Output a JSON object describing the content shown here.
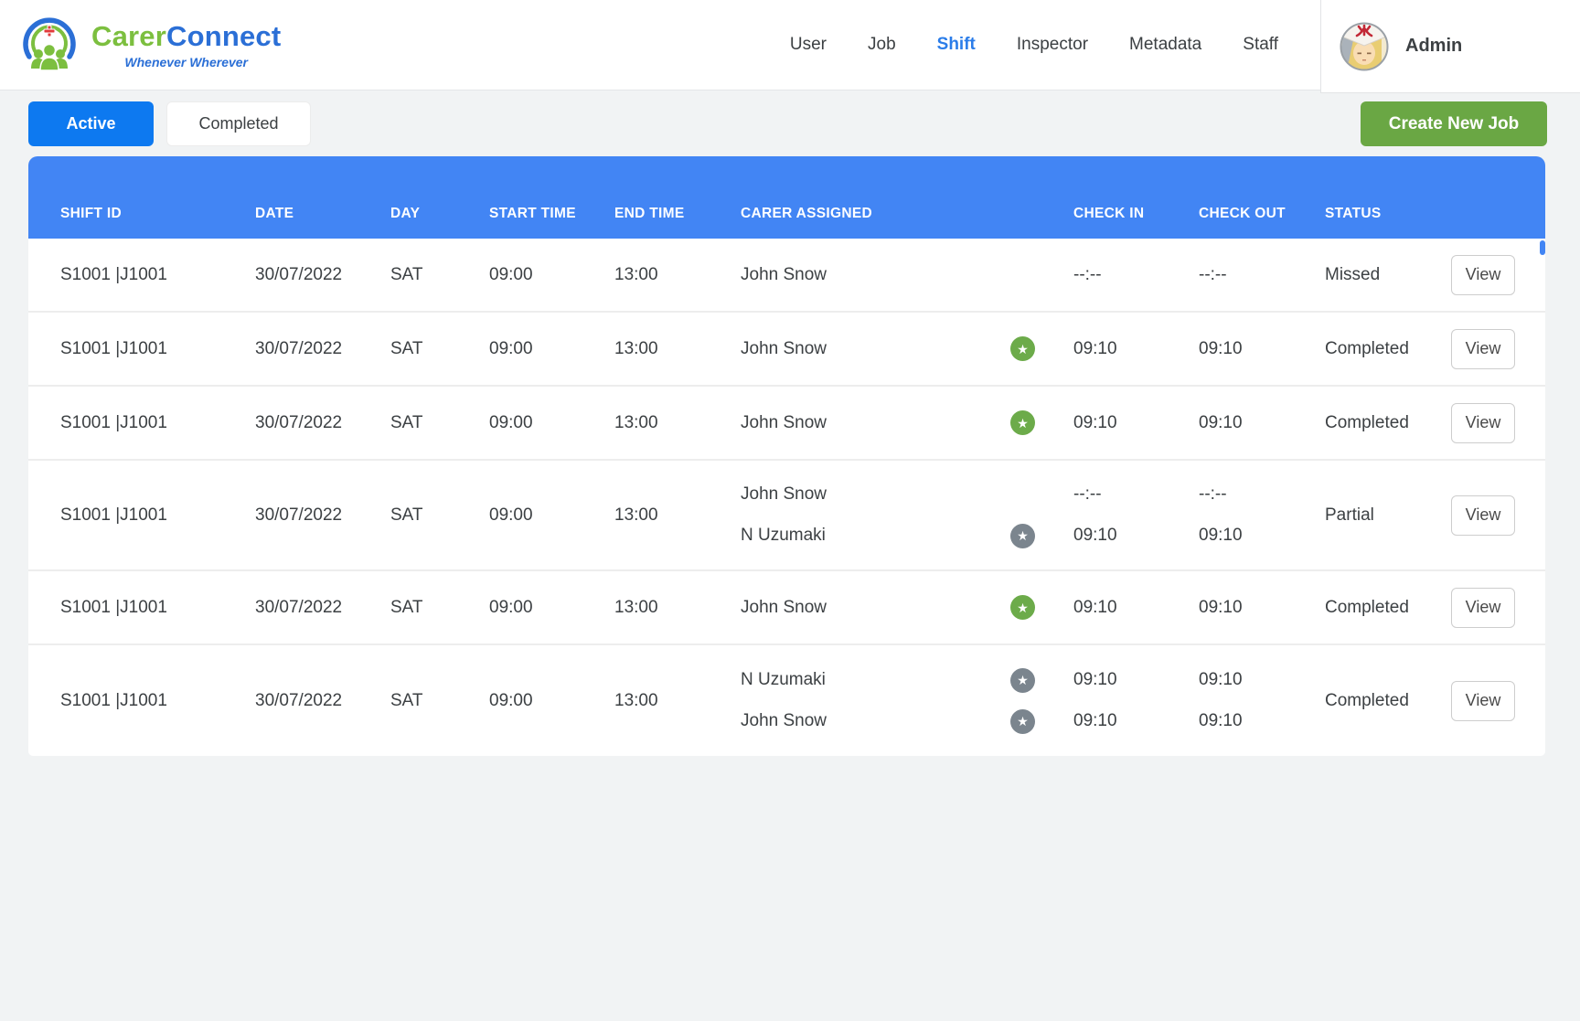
{
  "brand": {
    "name_green": "Carer",
    "name_blue": "Connect",
    "tagline": "Whenever Wherever"
  },
  "nav": {
    "items": [
      {
        "label": "User",
        "active": false
      },
      {
        "label": "Job",
        "active": false
      },
      {
        "label": "Shift",
        "active": true
      },
      {
        "label": "Inspector",
        "active": false
      },
      {
        "label": "Metadata",
        "active": false
      },
      {
        "label": "Staff",
        "active": false
      }
    ]
  },
  "user": {
    "name": "Admin"
  },
  "tabs": [
    {
      "label": "Active",
      "active": true
    },
    {
      "label": "Completed",
      "active": false
    }
  ],
  "actions": {
    "create_new_job": "Create New Job"
  },
  "table": {
    "columns": [
      "SHIFT ID",
      "DATE",
      "DAY",
      "START TIME",
      "END TIME",
      "CARER ASSIGNED",
      "CHECK IN",
      "CHECK OUT",
      "STATUS"
    ],
    "view_label": "View",
    "rows": [
      {
        "shift_id": "S1001 |J1001",
        "date": "30/07/2022",
        "day": "SAT",
        "start_time": "09:00",
        "end_time": "13:00",
        "status": "Missed",
        "carers": [
          {
            "name": "John Snow",
            "star": null,
            "check_in": "--:--",
            "check_out": "--:--"
          }
        ]
      },
      {
        "shift_id": "S1001 |J1001",
        "date": "30/07/2022",
        "day": "SAT",
        "start_time": "09:00",
        "end_time": "13:00",
        "status": "Completed",
        "carers": [
          {
            "name": "John Snow",
            "star": "green",
            "check_in": "09:10",
            "check_out": "09:10"
          }
        ]
      },
      {
        "shift_id": "S1001 |J1001",
        "date": "30/07/2022",
        "day": "SAT",
        "start_time": "09:00",
        "end_time": "13:00",
        "status": "Completed",
        "carers": [
          {
            "name": "John Snow",
            "star": "green",
            "check_in": "09:10",
            "check_out": "09:10"
          }
        ]
      },
      {
        "shift_id": "S1001 |J1001",
        "date": "30/07/2022",
        "day": "SAT",
        "start_time": "09:00",
        "end_time": "13:00",
        "status": "Partial",
        "carers": [
          {
            "name": "John Snow",
            "star": null,
            "check_in": "--:--",
            "check_out": "--:--"
          },
          {
            "name": "N Uzumaki",
            "star": "gray",
            "check_in": "09:10",
            "check_out": "09:10"
          }
        ]
      },
      {
        "shift_id": "S1001 |J1001",
        "date": "30/07/2022",
        "day": "SAT",
        "start_time": "09:00",
        "end_time": "13:00",
        "status": "Completed",
        "carers": [
          {
            "name": "John Snow",
            "star": "green",
            "check_in": "09:10",
            "check_out": "09:10"
          }
        ]
      },
      {
        "shift_id": "S1001 |J1001",
        "date": "30/07/2022",
        "day": "SAT",
        "start_time": "09:00",
        "end_time": "13:00",
        "status": "Completed",
        "carers": [
          {
            "name": "N Uzumaki",
            "star": "gray",
            "check_in": "09:10",
            "check_out": "09:10"
          },
          {
            "name": "John Snow",
            "star": "gray",
            "check_in": "09:10",
            "check_out": "09:10"
          }
        ]
      }
    ]
  },
  "colors": {
    "table_header_blue": "#4285f4",
    "active_tab_blue": "#0d79f0",
    "button_green": "#6aa744",
    "star_green": "#6cab4a",
    "star_gray": "#7b858e",
    "brand_green": "#7cbf3f",
    "brand_blue": "#2b6fd6",
    "nav_active_blue": "#2b7de9",
    "page_bg": "#f1f3f4"
  }
}
